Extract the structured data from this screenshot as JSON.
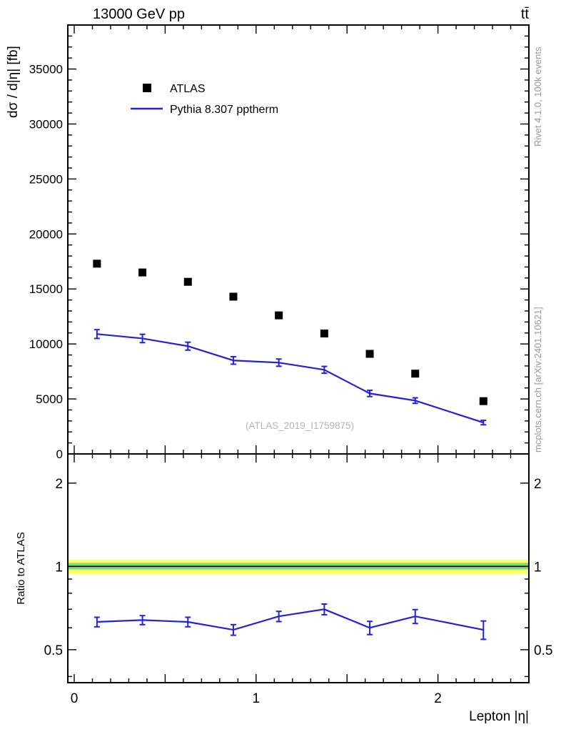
{
  "titles": {
    "left": "13000 GeV pp",
    "right": "tt̄"
  },
  "ylabels": {
    "main": "dσ / d|η| [fb]",
    "ratio": "Ratio to ATLAS"
  },
  "xlabel": "Lepton |η|",
  "legend": [
    {
      "label": "ATLAS",
      "marker": "square"
    },
    {
      "label": "Pythia 8.307 pptherm",
      "marker": "line"
    }
  ],
  "annotations": {
    "watermark": "(ATLAS_2019_I1759875)",
    "rivet": "Rivet 4.1.0,  100k events",
    "mcplots": "mcplots.cern.ch [arXiv:2401.10621]"
  },
  "colors": {
    "atlas": "#000000",
    "pythia": "#2323d2",
    "band_yellow": "#ffff66",
    "band_green": "#7ade7a",
    "frame": "#000000",
    "gray_text": "#999999",
    "watermark": "#b4b4b4"
  },
  "chart_data": [
    {
      "type": "scatter+line",
      "title": "13000 GeV pp — tt̄, lepton |η| differential cross-section",
      "xlabel": "Lepton |η|",
      "ylabel": "dσ / d|η| [fb]",
      "xlim": [
        0,
        2.5
      ],
      "ylim": [
        0,
        39000
      ],
      "xticks": [
        0,
        1,
        2
      ],
      "xtick_major": 0.5,
      "xtick_minor": 0.1,
      "yticks": [
        0,
        5000,
        10000,
        15000,
        20000,
        25000,
        30000,
        35000
      ],
      "ytick_major": 5000,
      "ytick_minor": 1000,
      "x": [
        0.125,
        0.375,
        0.625,
        0.875,
        1.125,
        1.375,
        1.625,
        1.875,
        2.25
      ],
      "series": [
        {
          "name": "ATLAS",
          "type": "scatter",
          "marker": "square",
          "values": [
            17300,
            16500,
            15650,
            14300,
            12600,
            10950,
            9100,
            7300,
            4800
          ]
        },
        {
          "name": "Pythia 8.307 pptherm",
          "type": "line",
          "values": [
            10900,
            10500,
            9800,
            8500,
            8300,
            7650,
            5500,
            4850,
            2850
          ],
          "errors": [
            400,
            380,
            360,
            340,
            330,
            310,
            280,
            250,
            200
          ]
        }
      ]
    },
    {
      "type": "line",
      "title": "Ratio to ATLAS",
      "ylabel": "Ratio to ATLAS",
      "yscale": "log",
      "ylim": [
        0.38,
        2.55
      ],
      "yticks_major": [
        0.5,
        1,
        2
      ],
      "yticks_minor": [
        0.4,
        0.6,
        0.7,
        0.8,
        0.9
      ],
      "band_outer": [
        0.94,
        1.06
      ],
      "band_inner": [
        0.975,
        1.03
      ],
      "reference_line": 1,
      "x": [
        0.125,
        0.375,
        0.625,
        0.875,
        1.125,
        1.375,
        1.625,
        1.875,
        2.25
      ],
      "series": [
        {
          "name": "Pythia 8.307 pptherm / ATLAS",
          "values": [
            0.63,
            0.64,
            0.63,
            0.59,
            0.66,
            0.7,
            0.6,
            0.66,
            0.59
          ],
          "errors": [
            0.025,
            0.024,
            0.025,
            0.026,
            0.028,
            0.031,
            0.033,
            0.038,
            0.045
          ]
        }
      ]
    }
  ]
}
